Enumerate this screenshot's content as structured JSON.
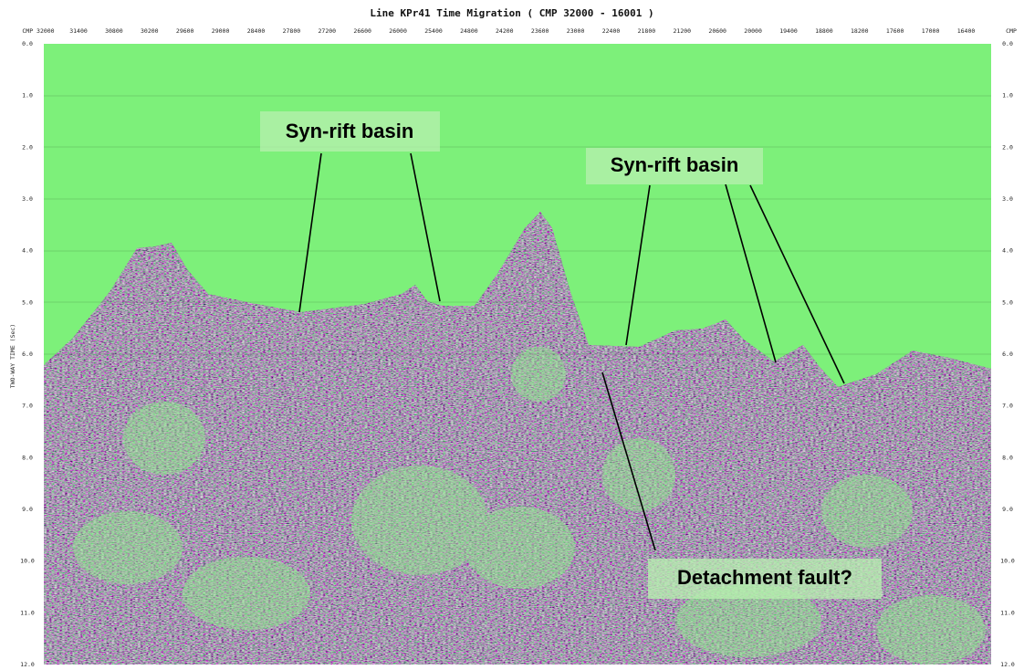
{
  "title": "Line KPr41 Time Migration ( CMP 32000 - 16001 )",
  "x_axis": {
    "labels": [
      "CMP 32000",
      "31400",
      "30800",
      "30200",
      "29600",
      "29000",
      "28400",
      "27800",
      "27200",
      "26600",
      "26000",
      "25400",
      "24800",
      "24200",
      "23600",
      "23000",
      "22400",
      "21800",
      "21200",
      "20600",
      "20000",
      "19400",
      "18800",
      "18200",
      "17600",
      "17000",
      "16400",
      "CMP"
    ]
  },
  "y_axis": {
    "title": "TWO-WAY TIME (Sec)",
    "labels": [
      "0.0",
      "1.0",
      "2.0",
      "3.0",
      "4.0",
      "5.0",
      "6.0",
      "7.0",
      "8.0",
      "9.0",
      "10.0",
      "11.0",
      "12.0"
    ]
  },
  "annotations": [
    "Syn-rift basin",
    "Syn-rift basin",
    "Detachment fault?"
  ]
}
